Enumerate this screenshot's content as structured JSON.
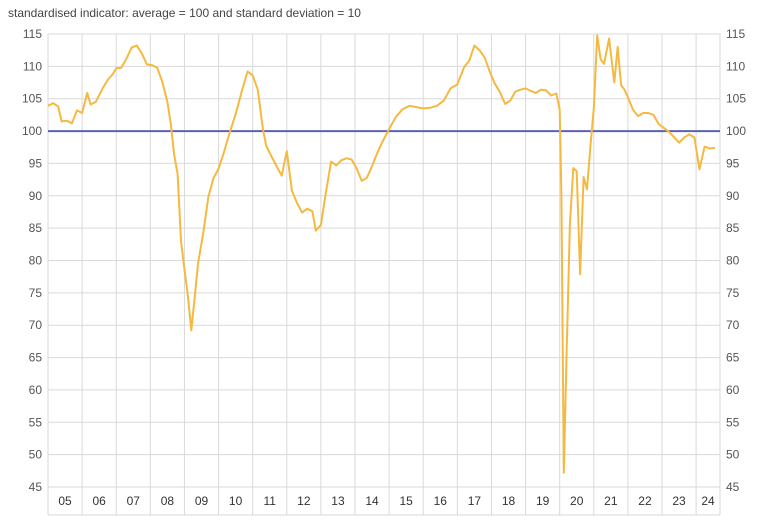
{
  "chart_data": {
    "type": "line",
    "subtitle": "standardised indicator: average = 100 and standard deviation = 10",
    "ylim": [
      45,
      115
    ],
    "yticks": [
      45,
      50,
      55,
      60,
      65,
      70,
      75,
      80,
      85,
      90,
      95,
      100,
      105,
      110,
      115
    ],
    "x_categories": [
      "05",
      "06",
      "07",
      "08",
      "09",
      "10",
      "11",
      "12",
      "13",
      "14",
      "15",
      "16",
      "17",
      "18",
      "19",
      "20",
      "21",
      "22",
      "23",
      "24"
    ],
    "x_range": [
      2005.0,
      2024.7
    ],
    "grid": true,
    "right_axis": true,
    "reference_line": {
      "value": 100,
      "color": "#5b63b0"
    },
    "series": [
      {
        "color": "#f5b942",
        "x": [
          2005.0,
          2005.15,
          2005.3,
          2005.4,
          2005.55,
          2005.7,
          2005.85,
          2006.0,
          2006.15,
          2006.25,
          2006.4,
          2006.6,
          2006.75,
          2006.9,
          2007.0,
          2007.15,
          2007.3,
          2007.45,
          2007.6,
          2007.75,
          2007.9,
          2008.05,
          2008.2,
          2008.35,
          2008.5,
          2008.6,
          2008.7,
          2008.8,
          2008.9,
          2009.0,
          2009.1,
          2009.2,
          2009.3,
          2009.4,
          2009.55,
          2009.7,
          2009.85,
          2010.0,
          2010.15,
          2010.3,
          2010.5,
          2010.7,
          2010.85,
          2011.0,
          2011.15,
          2011.3,
          2011.4,
          2011.55,
          2011.7,
          2011.85,
          2012.0,
          2012.15,
          2012.3,
          2012.45,
          2012.6,
          2012.75,
          2012.85,
          2013.0,
          2013.15,
          2013.3,
          2013.45,
          2013.6,
          2013.75,
          2013.9,
          2014.05,
          2014.2,
          2014.35,
          2014.5,
          2014.65,
          2014.8,
          2015.0,
          2015.2,
          2015.4,
          2015.6,
          2015.8,
          2016.0,
          2016.2,
          2016.4,
          2016.6,
          2016.8,
          2017.0,
          2017.2,
          2017.35,
          2017.5,
          2017.65,
          2017.8,
          2017.95,
          2018.1,
          2018.25,
          2018.4,
          2018.55,
          2018.7,
          2018.85,
          2019.0,
          2019.15,
          2019.3,
          2019.45,
          2019.6,
          2019.75,
          2019.9,
          2020.0,
          2020.05,
          2020.12,
          2020.2,
          2020.3,
          2020.4,
          2020.5,
          2020.6,
          2020.7,
          2020.8,
          2020.9,
          2021.0,
          2021.1,
          2021.2,
          2021.3,
          2021.45,
          2021.6,
          2021.7,
          2021.8,
          2021.9,
          2022.0,
          2022.15,
          2022.3,
          2022.45,
          2022.6,
          2022.75,
          2022.9,
          2023.05,
          2023.2,
          2023.35,
          2023.5,
          2023.65,
          2023.8,
          2023.95,
          2024.1,
          2024.25,
          2024.4,
          2024.55
        ],
        "y": [
          103.9,
          104.3,
          103.8,
          101.5,
          101.6,
          101.2,
          103.2,
          102.8,
          105.9,
          104.1,
          104.5,
          106.6,
          107.9,
          108.8,
          109.7,
          109.8,
          111.2,
          112.9,
          113.2,
          112.0,
          110.3,
          110.2,
          109.8,
          107.6,
          104.5,
          101.1,
          96.3,
          93.4,
          83.0,
          78.7,
          74.5,
          69.2,
          74.3,
          79.6,
          84.2,
          89.8,
          92.7,
          94.2,
          96.6,
          99.3,
          102.6,
          106.5,
          109.2,
          108.6,
          106.4,
          100.3,
          97.7,
          96.1,
          94.6,
          93.1,
          96.9,
          90.8,
          88.9,
          87.4,
          88.0,
          87.6,
          84.6,
          85.5,
          90.6,
          95.3,
          94.7,
          95.5,
          95.8,
          95.6,
          94.2,
          92.3,
          92.8,
          94.6,
          96.6,
          98.3,
          100.3,
          102.2,
          103.4,
          103.9,
          103.7,
          103.5,
          103.6,
          103.9,
          104.7,
          106.6,
          107.2,
          109.9,
          110.9,
          113.2,
          112.5,
          111.4,
          109.2,
          107.3,
          106.0,
          104.2,
          104.7,
          106.1,
          106.4,
          106.6,
          106.2,
          105.9,
          106.4,
          106.3,
          105.5,
          105.8,
          103.3,
          90.0,
          47.2,
          65.0,
          85.6,
          94.3,
          93.8,
          77.9,
          92.9,
          91.0,
          97.6,
          103.5,
          114.8,
          111.1,
          110.4,
          114.3,
          107.5,
          113.0,
          107.1,
          106.4,
          105.2,
          103.3,
          102.3,
          102.8,
          102.8,
          102.5,
          101.1,
          100.5,
          99.9,
          99.1,
          98.2,
          99.0,
          99.5,
          99.0,
          94.1,
          97.6,
          97.3,
          97.4
        ]
      }
    ]
  }
}
